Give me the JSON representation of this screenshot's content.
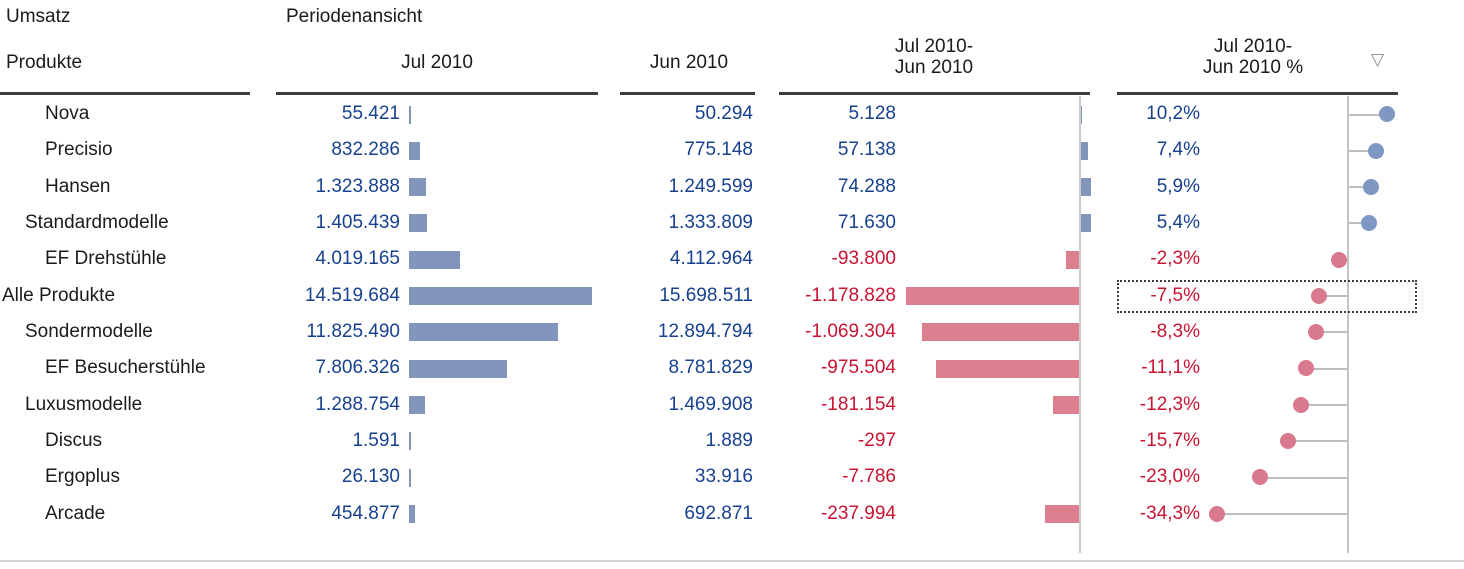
{
  "header": {
    "title": "Umsatz",
    "view_label": "Periodenansicht",
    "sort_icon": "▽"
  },
  "colors": {
    "value_blue": "#17418F",
    "value_red": "#C81432",
    "bar_blue": "#8296BC",
    "bar_red": "#DC8090",
    "dot_blue": "#7E97C3",
    "dot_red": "#D8798D",
    "axis_gray": "#CBCBCB"
  },
  "chart_data": {
    "type": "table",
    "title": "Umsatz",
    "subtitle": "Periodenansicht",
    "columns": {
      "products": "Produkte",
      "jul": "Jul 2010",
      "jun": "Jun 2010",
      "diff_line1": "Jul 2010-",
      "diff_line2": "Jun 2010",
      "pct_line1": "Jul 2010-",
      "pct_line2": "Jun 2010 %"
    },
    "sorted_by": "Jul 2010-Jun 2010 % descending",
    "microcharts": {
      "jul_column": "horizontal bar chart, blue, zero at left baseline",
      "diff_column": "horizontal bar chart, positive blue right / negative red left of vertical zero axis at right of column",
      "pct_column": "lollipop dot plot, positive blue right / negative red left of vertical zero axis, gray connector lines"
    },
    "rows": [
      {
        "name": "Nova",
        "level": 2,
        "jul": "55.421",
        "jul_value": 55421,
        "jun": "50.294",
        "jun_value": 50294,
        "diff": "5.128",
        "diff_value": 5128,
        "pct": "10,2%",
        "pct_value": 10.2,
        "selected": false
      },
      {
        "name": "Precisio",
        "level": 2,
        "jul": "832.286",
        "jul_value": 832286,
        "jun": "775.148",
        "jun_value": 775148,
        "diff": "57.138",
        "diff_value": 57138,
        "pct": "7,4%",
        "pct_value": 7.4,
        "selected": false
      },
      {
        "name": "Hansen",
        "level": 2,
        "jul": "1.323.888",
        "jul_value": 1323888,
        "jun": "1.249.599",
        "jun_value": 1249599,
        "diff": "74.288",
        "diff_value": 74288,
        "pct": "5,9%",
        "pct_value": 5.9,
        "selected": false
      },
      {
        "name": "Standardmodelle",
        "level": 1,
        "jul": "1.405.439",
        "jul_value": 1405439,
        "jun": "1.333.809",
        "jun_value": 1333809,
        "diff": "71.630",
        "diff_value": 71630,
        "pct": "5,4%",
        "pct_value": 5.4,
        "selected": false
      },
      {
        "name": "EF Drehstühle",
        "level": 2,
        "jul": "4.019.165",
        "jul_value": 4019165,
        "jun": "4.112.964",
        "jun_value": 4112964,
        "diff": "-93.800",
        "diff_value": -93800,
        "pct": "-2,3%",
        "pct_value": -2.3,
        "selected": false
      },
      {
        "name": "Alle Produkte",
        "level": 0,
        "jul": "14.519.684",
        "jul_value": 14519684,
        "jun": "15.698.511",
        "jun_value": 15698511,
        "diff": "-1.178.828",
        "diff_value": -1178828,
        "pct": "-7,5%",
        "pct_value": -7.5,
        "selected": true
      },
      {
        "name": "Sondermodelle",
        "level": 1,
        "jul": "11.825.490",
        "jul_value": 11825490,
        "jun": "12.894.794",
        "jun_value": 12894794,
        "diff": "-1.069.304",
        "diff_value": -1069304,
        "pct": "-8,3%",
        "pct_value": -8.3,
        "selected": false
      },
      {
        "name": "EF Besucherstühle",
        "level": 2,
        "jul": "7.806.326",
        "jul_value": 7806326,
        "jun": "8.781.829",
        "jun_value": 8781829,
        "diff": "-975.504",
        "diff_value": -975504,
        "pct": "-11,1%",
        "pct_value": -11.1,
        "selected": false
      },
      {
        "name": "Luxusmodelle",
        "level": 1,
        "jul": "1.288.754",
        "jul_value": 1288754,
        "jun": "1.469.908",
        "jun_value": 1469908,
        "diff": "-181.154",
        "diff_value": -181154,
        "pct": "-12,3%",
        "pct_value": -12.3,
        "selected": false
      },
      {
        "name": "Discus",
        "level": 2,
        "jul": "1.591",
        "jul_value": 1591,
        "jun": "1.889",
        "jun_value": 1889,
        "diff": "-297",
        "diff_value": -297,
        "pct": "-15,7%",
        "pct_value": -15.7,
        "selected": false
      },
      {
        "name": "Ergoplus",
        "level": 2,
        "jul": "26.130",
        "jul_value": 26130,
        "jun": "33.916",
        "jun_value": 33916,
        "diff": "-7.786",
        "diff_value": -7786,
        "pct": "-23,0%",
        "pct_value": -23.0,
        "selected": false
      },
      {
        "name": "Arcade",
        "level": 2,
        "jul": "454.877",
        "jul_value": 454877,
        "jun": "692.871",
        "jun_value": 692871,
        "diff": "-237.994",
        "diff_value": -237994,
        "pct": "-34,3%",
        "pct_value": -34.3,
        "selected": false
      }
    ]
  }
}
